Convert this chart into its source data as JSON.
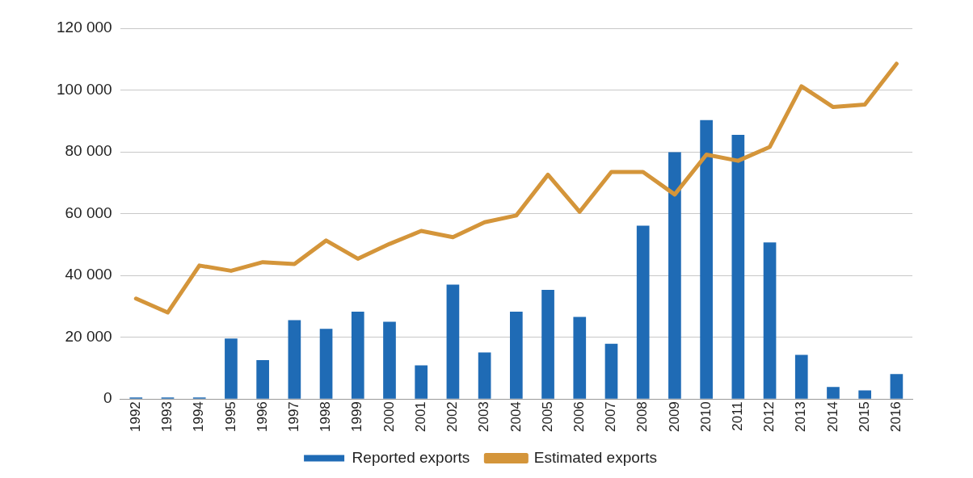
{
  "chart_data": {
    "type": "bar",
    "categories": [
      "1992",
      "1993",
      "1994",
      "1995",
      "1996",
      "1997",
      "1998",
      "1999",
      "2000",
      "2001",
      "2002",
      "2003",
      "2004",
      "2005",
      "2006",
      "2007",
      "2008",
      "2009",
      "2010",
      "2011",
      "2012",
      "2013",
      "2014",
      "2015",
      "2016"
    ],
    "series": [
      {
        "name": "Reported exports",
        "color": "#1f6bb5",
        "values": [
          500,
          500,
          500,
          19600,
          12600,
          25500,
          22700,
          28300,
          25000,
          10900,
          37000,
          15100,
          28300,
          35300,
          26600,
          17900,
          56100,
          79900,
          90300,
          85500,
          50700,
          14300,
          3900,
          2800,
          8100
        ]
      },
      {
        "name": "Estimated exports",
        "type": "line",
        "color": "#d4953a",
        "values": [
          32500,
          28000,
          43200,
          41500,
          44300,
          43700,
          51300,
          45400,
          50200,
          54400,
          52400,
          57200,
          59400,
          72600,
          60600,
          73500,
          73500,
          66200,
          79100,
          77100,
          81600,
          101200,
          94500,
          95300,
          108500
        ]
      }
    ],
    "ylim": [
      0,
      120000
    ],
    "yticks": [
      {
        "value": 0,
        "label": "0"
      },
      {
        "value": 20000,
        "label": "20 000"
      },
      {
        "value": 40000,
        "label": "40 000"
      },
      {
        "value": 60000,
        "label": "60 000"
      },
      {
        "value": 80000,
        "label": "80 000"
      },
      {
        "value": 100000,
        "label": "100 000"
      },
      {
        "value": 120000,
        "label": "120 000"
      }
    ],
    "grid": "y",
    "legend": "bottom",
    "marker": "none",
    "line_style": "solid"
  }
}
